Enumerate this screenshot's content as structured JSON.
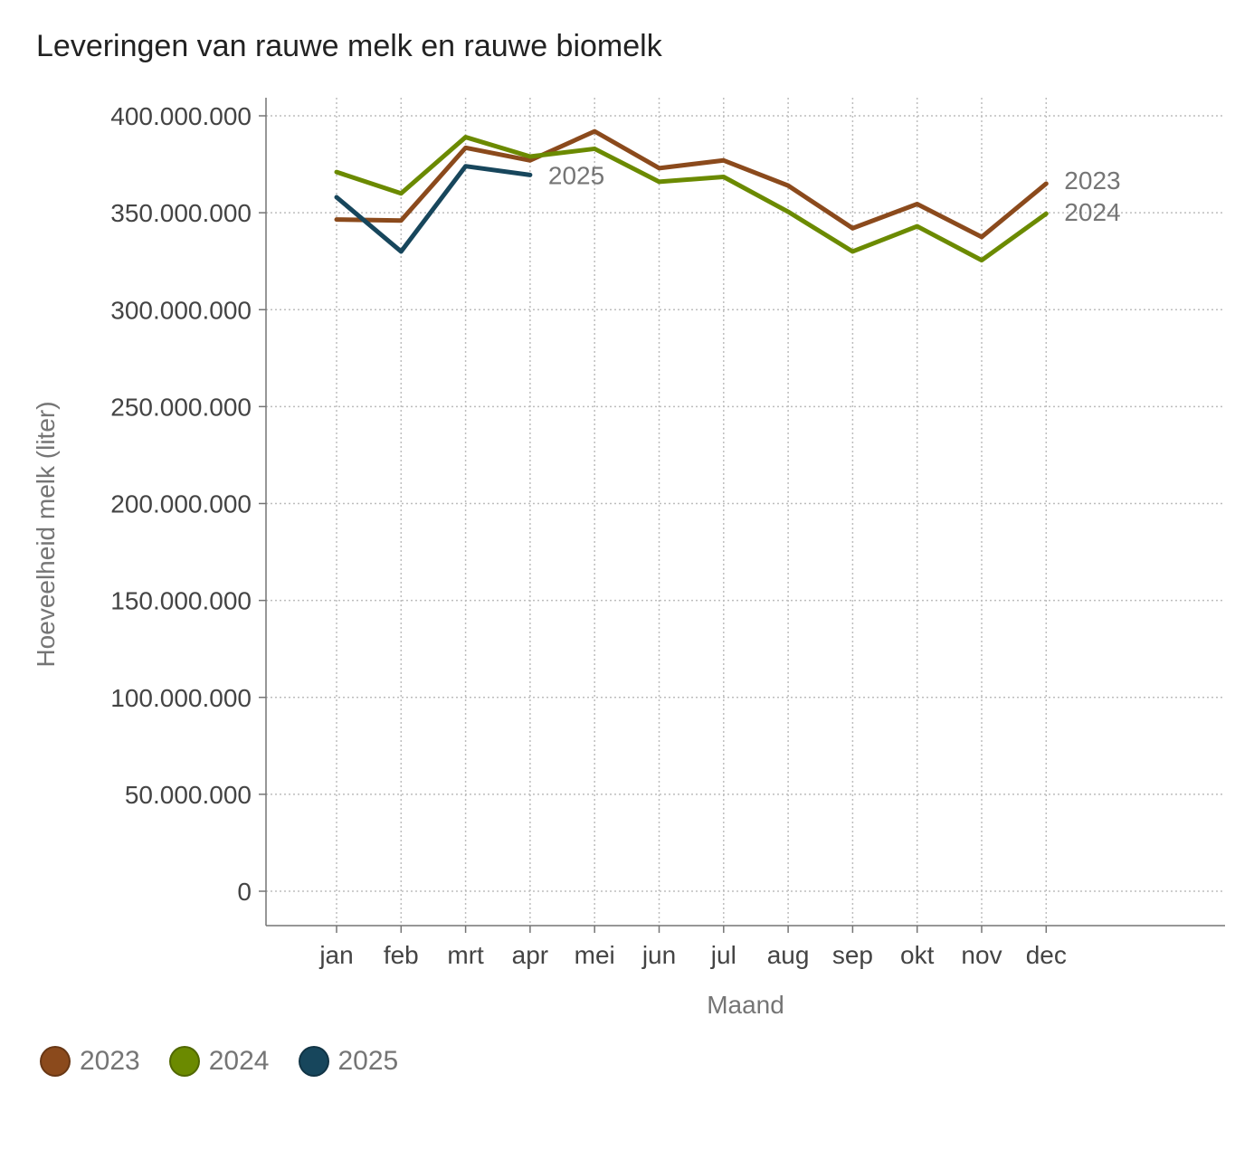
{
  "title": "Leveringen van rauwe melk en rauwe biomelk",
  "chart_data": {
    "type": "line",
    "title": "Leveringen van rauwe melk en rauwe biomelk",
    "xlabel": "Maand",
    "ylabel": "Hoeveelheid melk (liter)",
    "categories": [
      "jan",
      "feb",
      "mrt",
      "apr",
      "mei",
      "jun",
      "jul",
      "aug",
      "sep",
      "okt",
      "nov",
      "dec"
    ],
    "ylim": [
      0,
      400000000
    ],
    "yticks": [
      0,
      50000000,
      100000000,
      150000000,
      200000000,
      250000000,
      300000000,
      350000000,
      400000000
    ],
    "ytick_labels": [
      "0",
      "50.000.000",
      "100.000.000",
      "150.000.000",
      "200.000.000",
      "250.000.000",
      "300.000.000",
      "350.000.000",
      "400.000.000"
    ],
    "grid": true,
    "legend_position": "bottom-left",
    "series": [
      {
        "name": "2023",
        "color": "#8b4a1c",
        "values": [
          346500000,
          346000000,
          383500000,
          377000000,
          392000000,
          373000000,
          377000000,
          364000000,
          342000000,
          354500000,
          337500000,
          365000000
        ]
      },
      {
        "name": "2024",
        "color": "#6b8a00",
        "values": [
          371000000,
          360000000,
          389000000,
          379000000,
          383000000,
          366000000,
          368500000,
          350500000,
          330000000,
          343000000,
          325500000,
          349500000
        ]
      },
      {
        "name": "2025",
        "color": "#17465c",
        "values": [
          358000000,
          330000000,
          374000000,
          369500000,
          null,
          null,
          null,
          null,
          null,
          null,
          null,
          null
        ]
      }
    ]
  },
  "legend": {
    "items": [
      {
        "label": "2023",
        "color": "#8b4a1c"
      },
      {
        "label": "2024",
        "color": "#6b8a00"
      },
      {
        "label": "2025",
        "color": "#17465c"
      }
    ]
  }
}
